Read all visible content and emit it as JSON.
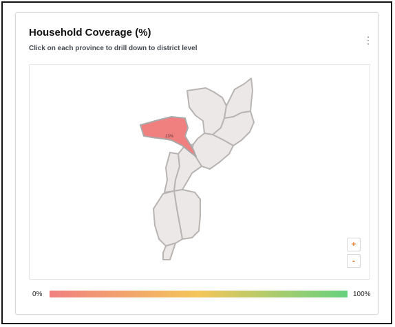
{
  "widget": {
    "title": "Household Coverage (%)",
    "subtitle": "Click on each province to drill down to district level",
    "menu_icon": "kebab-menu-icon"
  },
  "map": {
    "region": "Mozambique provinces",
    "highlighted_province": {
      "label": "13%",
      "value": 13,
      "color": "#f08080"
    },
    "default_province_color": "#ece8e7",
    "border_color": "#b8b4b2",
    "zoom_in_label": "+",
    "zoom_out_label": "-"
  },
  "legend": {
    "min_label": "0%",
    "max_label": "100%",
    "gradient_colors": [
      "#f08080",
      "#f4c65a",
      "#66d17e"
    ]
  }
}
